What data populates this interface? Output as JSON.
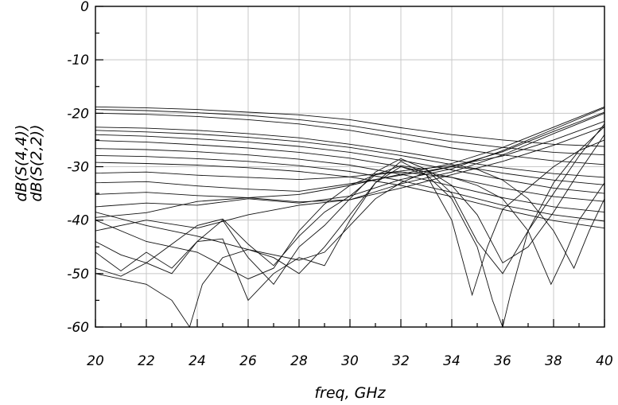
{
  "chart_data": {
    "type": "line",
    "xlabel": "freq, GHz",
    "ylabels": [
      "dB(S(4,4))",
      "dB(S(2,2))"
    ],
    "xlim": [
      20,
      40
    ],
    "ylim": [
      -60,
      0
    ],
    "xticks": [
      "20",
      "22",
      "24",
      "26",
      "28",
      "30",
      "32",
      "34",
      "36",
      "38",
      "40"
    ],
    "yticks": [
      "0",
      "-10",
      "-20",
      "-30",
      "-40",
      "-50",
      "-60"
    ],
    "grid": true,
    "line_color": "#111111",
    "grid_color": "#c8c8c8",
    "series": [
      {
        "x": [
          20,
          22,
          24,
          26,
          28,
          30,
          32,
          34,
          36,
          38,
          40
        ],
        "values": [
          -18.8,
          -19.0,
          -19.3,
          -19.8,
          -20.3,
          -21.2,
          -22.7,
          -24.0,
          -25.0,
          -25.8,
          -26.2
        ]
      },
      {
        "x": [
          20,
          22,
          24,
          26,
          28,
          30,
          32,
          34,
          36,
          38,
          40
        ],
        "values": [
          -19.3,
          -19.5,
          -19.9,
          -20.4,
          -21.2,
          -22.3,
          -23.8,
          -25.3,
          -26.4,
          -27.3,
          -27.8
        ]
      },
      {
        "x": [
          20,
          22,
          24,
          26,
          28,
          30,
          32,
          34,
          36,
          38,
          40
        ],
        "values": [
          -20.0,
          -20.2,
          -20.6,
          -21.2,
          -22.0,
          -23.2,
          -24.8,
          -26.5,
          -27.8,
          -28.9,
          -29.6
        ]
      },
      {
        "x": [
          20,
          22,
          24,
          26,
          28,
          30,
          32,
          34,
          36,
          38,
          40
        ],
        "values": [
          -22.6,
          -22.8,
          -23.2,
          -23.8,
          -24.6,
          -25.8,
          -27.2,
          -28.8,
          -30.2,
          -31.3,
          -32.0
        ]
      },
      {
        "x": [
          20,
          22,
          24,
          26,
          28,
          30,
          32,
          34,
          36,
          38,
          40
        ],
        "values": [
          -23.2,
          -23.5,
          -23.9,
          -24.5,
          -25.3,
          -26.4,
          -27.9,
          -29.6,
          -31.2,
          -32.5,
          -33.4
        ]
      },
      {
        "x": [
          20,
          22,
          24,
          26,
          28,
          30,
          32,
          34,
          36,
          38,
          40
        ],
        "values": [
          -24.0,
          -24.3,
          -24.8,
          -25.4,
          -26.2,
          -27.3,
          -28.8,
          -30.6,
          -32.4,
          -34.0,
          -35.0
        ]
      },
      {
        "x": [
          20,
          22,
          24,
          26,
          28,
          30,
          32,
          34,
          36,
          38,
          40
        ],
        "values": [
          -25.1,
          -25.4,
          -25.9,
          -26.5,
          -27.3,
          -28.4,
          -30.0,
          -32.0,
          -34.0,
          -35.6,
          -36.5
        ]
      },
      {
        "x": [
          20,
          22,
          24,
          26,
          28,
          30,
          32,
          34,
          36,
          38,
          40
        ],
        "values": [
          -26.6,
          -26.8,
          -27.2,
          -27.8,
          -28.6,
          -29.7,
          -31.4,
          -33.6,
          -35.8,
          -37.5,
          -38.5
        ]
      },
      {
        "x": [
          20,
          22,
          24,
          26,
          28,
          30,
          32,
          34,
          36,
          38,
          40
        ],
        "values": [
          -27.9,
          -28.1,
          -28.5,
          -29.0,
          -29.8,
          -30.9,
          -32.6,
          -34.8,
          -37.2,
          -39.0,
          -40.2
        ]
      },
      {
        "x": [
          20,
          22,
          24,
          26,
          28,
          30,
          32,
          34,
          36,
          38,
          40
        ],
        "values": [
          -29.2,
          -29.4,
          -29.7,
          -30.2,
          -30.9,
          -31.9,
          -33.5,
          -35.6,
          -38.0,
          -40.1,
          -41.5
        ]
      },
      {
        "x": [
          20,
          22,
          24,
          26,
          28,
          30,
          32,
          34,
          36,
          38,
          40
        ],
        "values": [
          -31.2,
          -31.0,
          -31.6,
          -32.0,
          -32.4,
          -31.9,
          -30.8,
          -29.8,
          -28.0,
          -25.0,
          -21.5
        ]
      },
      {
        "x": [
          20,
          22,
          24,
          26,
          28,
          30,
          32,
          34,
          36,
          38,
          40
        ],
        "values": [
          -33.0,
          -32.8,
          -33.6,
          -34.2,
          -34.6,
          -33.2,
          -31.6,
          -30.0,
          -27.2,
          -23.4,
          -19.8
        ]
      },
      {
        "x": [
          20,
          22,
          24,
          26,
          28,
          30,
          32,
          34,
          36,
          38,
          40
        ],
        "values": [
          -35.2,
          -34.8,
          -35.4,
          -35.8,
          -35.2,
          -33.5,
          -31.4,
          -29.4,
          -26.4,
          -22.6,
          -18.8
        ]
      },
      {
        "x": [
          20,
          22,
          24,
          26,
          28,
          30,
          32,
          34,
          36,
          38,
          40
        ],
        "values": [
          -37.5,
          -36.8,
          -37.2,
          -36.0,
          -36.8,
          -35.5,
          -32.4,
          -30.4,
          -27.0,
          -23.0,
          -19.0
        ]
      },
      {
        "x": [
          20,
          22,
          24,
          26,
          28,
          30,
          32,
          34,
          36,
          38,
          40
        ],
        "values": [
          -39.5,
          -38.6,
          -36.5,
          -35.8,
          -36.6,
          -36.2,
          -33.2,
          -31.0,
          -27.8,
          -23.8,
          -20.0
        ]
      },
      {
        "x": [
          20,
          22,
          24,
          26,
          28,
          30,
          32,
          34,
          36,
          38,
          40
        ],
        "values": [
          -42.0,
          -40.0,
          -41.5,
          -39.0,
          -37.2,
          -36.2,
          -34.0,
          -31.5,
          -29.0,
          -26.0,
          -22.5
        ]
      },
      {
        "x": [
          20,
          21,
          22,
          23,
          24,
          25,
          26,
          27,
          28,
          29,
          30,
          31,
          32,
          33,
          34,
          35,
          36,
          37,
          38,
          39,
          40
        ],
        "values": [
          -44.0,
          -46.5,
          -48.0,
          -44.5,
          -41.0,
          -39.8,
          -44.5,
          -48.5,
          -43.0,
          -38.5,
          -35.5,
          -31.5,
          -29.8,
          -30.5,
          -33.5,
          -39.0,
          -48.0,
          -45.0,
          -38.5,
          -31.0,
          -24.0
        ]
      },
      {
        "x": [
          20,
          21,
          22,
          23,
          24,
          25,
          26,
          27,
          28,
          29,
          30,
          31,
          32,
          33,
          34,
          35,
          36,
          37,
          38,
          39,
          40
        ],
        "values": [
          -46.0,
          -49.5,
          -46.0,
          -49.0,
          -44.0,
          -40.0,
          -47.0,
          -52.0,
          -45.0,
          -41.0,
          -36.0,
          -31.0,
          -28.5,
          -30.5,
          -35.0,
          -44.0,
          -50.0,
          -42.0,
          -35.0,
          -28.0,
          -22.0
        ]
      },
      {
        "x": [
          20,
          21,
          22,
          23,
          24,
          25,
          26,
          27,
          28,
          29,
          30,
          31,
          32,
          33,
          34,
          35,
          35.6,
          36,
          36.3,
          37,
          38,
          39,
          40
        ],
        "values": [
          -49.0,
          -50.5,
          -48.0,
          -50.0,
          -44.0,
          -43.5,
          -55.0,
          -50.0,
          -47.0,
          -48.5,
          -40.0,
          -33.0,
          -29.0,
          -31.5,
          -36.0,
          -45.0,
          -55.0,
          -60.0,
          -54.0,
          -42.0,
          -33.0,
          -27.0,
          -22.5
        ]
      },
      {
        "x": [
          20,
          22,
          23,
          23.7,
          24.2,
          25,
          26,
          27,
          28,
          29,
          30,
          31,
          32,
          33,
          34,
          34.8,
          35.4,
          36,
          37,
          38,
          39,
          40
        ],
        "values": [
          -50.0,
          -52.0,
          -55.0,
          -60.0,
          -52.0,
          -47.0,
          -45.5,
          -47.0,
          -50.0,
          -45.0,
          -39.0,
          -33.0,
          -30.0,
          -31.5,
          -40.0,
          -54.0,
          -45.0,
          -38.0,
          -34.0,
          -30.0,
          -27.0,
          -25.0
        ]
      },
      {
        "x": [
          20,
          22,
          24,
          25,
          26,
          27,
          28,
          29,
          30,
          31,
          32,
          33,
          34,
          35,
          36,
          37,
          37.9,
          38.4,
          39,
          40
        ],
        "values": [
          -40.0,
          -44.0,
          -46.0,
          -48.5,
          -51.0,
          -49.0,
          -42.0,
          -37.0,
          -33.5,
          -31.5,
          -31.0,
          -31.5,
          -32.0,
          -33.5,
          -36.0,
          -42.0,
          -52.0,
          -47.0,
          -40.0,
          -33.0
        ]
      },
      {
        "x": [
          20,
          22,
          24,
          26,
          28,
          29,
          30,
          31,
          32,
          33,
          34,
          35,
          36,
          37,
          38,
          38.8,
          39.4,
          40
        ],
        "values": [
          -38.5,
          -41.0,
          -43.0,
          -45.5,
          -47.5,
          -46.0,
          -41.0,
          -36.0,
          -33.0,
          -31.0,
          -30.0,
          -30.5,
          -32.5,
          -36.0,
          -42.0,
          -49.0,
          -42.0,
          -36.0
        ]
      }
    ]
  }
}
